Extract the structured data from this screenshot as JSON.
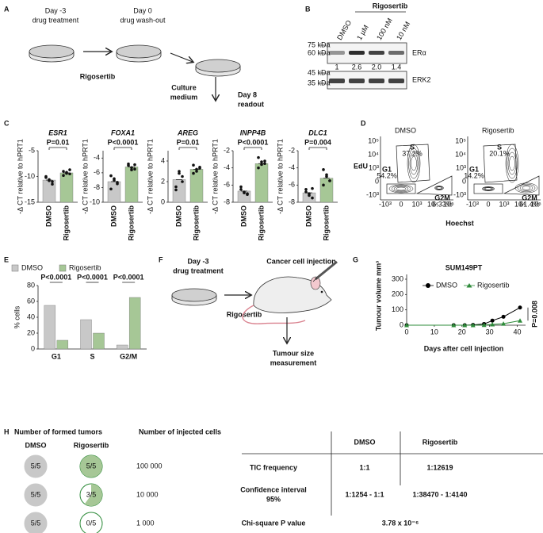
{
  "panel_labels": [
    "A",
    "B",
    "C",
    "D",
    "E",
    "F",
    "G",
    "H"
  ],
  "panel_a": {
    "steps": [
      {
        "day": "Day -3",
        "action": "drug treatment"
      },
      {
        "day": "Day 0",
        "action": "drug wash-out"
      }
    ],
    "drug": "Rigosertib",
    "medium": [
      "Culture",
      "medium"
    ],
    "readout": [
      "Day 8",
      "readout"
    ]
  },
  "panel_b": {
    "treatment": "Rigosertib",
    "lanes": [
      "DMSO",
      "1 µM",
      "100 nM",
      "10 nM"
    ],
    "markers_top": [
      "75 kDa",
      "60 kDa"
    ],
    "markers_bottom": [
      "45 kDa",
      "35 kDa"
    ],
    "proteins": [
      "ERα",
      "ERK2"
    ],
    "quantification": [
      "1",
      "2.6",
      "2.0",
      "1.4"
    ]
  },
  "panel_d": {
    "y_label": "EdU",
    "x_label": "Hoechst",
    "y_ticks": [
      "10⁵",
      "10⁴",
      "10³",
      "0",
      "-10³"
    ],
    "x_ticks": [
      "-10³",
      "0",
      "10³",
      "10⁴",
      "10⁵"
    ],
    "conditions": [
      {
        "name": "DMSO",
        "gates": [
          {
            "phase": "S",
            "percent": "37.2%"
          },
          {
            "phase": "G1",
            "percent": "54.2%"
          },
          {
            "phase": "G2M",
            "percent": "6.33%"
          }
        ]
      },
      {
        "name": "Rigosertib",
        "gates": [
          {
            "phase": "S",
            "percent": "20.1%"
          },
          {
            "phase": "G1",
            "percent": "14.2%"
          },
          {
            "phase": "G2M",
            "percent": "61.4%"
          }
        ]
      }
    ]
  },
  "panel_f": {
    "step": {
      "day": "Day -3",
      "action": "drug treatment"
    },
    "drug": "Rigosertib",
    "injection": "Cancer cell injection",
    "readout": [
      "Tumour size",
      "measurement"
    ]
  },
  "panel_h": {
    "formed_title": "Number of formed tumors",
    "injected_title": "Number of injected cells",
    "groups": [
      "DMSO",
      "Rigosertib"
    ],
    "rows": [
      {
        "dmso": {
          "label": "5/5",
          "fraction": 1
        },
        "rigosertib": {
          "label": "5/5",
          "fraction": 1
        },
        "cells": "100 000"
      },
      {
        "dmso": {
          "label": "5/5",
          "fraction": 1
        },
        "rigosertib": {
          "label": "3/5",
          "fraction": 0.6
        },
        "cells": "10 000"
      },
      {
        "dmso": {
          "label": "5/5",
          "fraction": 1
        },
        "rigosertib": {
          "label": "0/5",
          "fraction": 0
        },
        "cells": "1 000"
      }
    ],
    "table": {
      "header": [
        "DMSO",
        "Rigosertib"
      ],
      "rows": [
        [
          [
            "TIC frequency"
          ],
          "1:1",
          "1:12619"
        ],
        [
          [
            "Confidence interval",
            "95%"
          ],
          "1:1254 - 1:1",
          "1:38470 - 1:4140"
        ]
      ],
      "chi": [
        "Chi-square P value",
        "3.78 x 10⁻⁶"
      ]
    }
  },
  "chart_data": [
    {
      "type": "bar",
      "title": "ESR1",
      "annotation": "P=0.01",
      "y_label": "-Δ CT relative to hPRT1",
      "categories": [
        "DMSO",
        "Rigosertib"
      ],
      "values": [
        -10.7,
        -9.3
      ],
      "colors": [
        "#c8c8c8",
        "#a6c796"
      ],
      "points": [
        [
          -10.2,
          -10.8,
          -11.5,
          -10.0,
          -10.6,
          -11.0
        ],
        [
          -9.0,
          -9.4,
          -8.7,
          -9.8,
          -9.2,
          -9.5
        ]
      ],
      "ylim": [
        -15,
        -5
      ],
      "yticks": [
        -5,
        -10,
        -15
      ]
    },
    {
      "type": "bar",
      "title": "FOXA1",
      "annotation": "P<0.0001",
      "y_label": "-Δ CT relative to hPRT1",
      "categories": [
        "DMSO",
        "Rigosertib"
      ],
      "values": [
        -7.2,
        -5.2
      ],
      "colors": [
        "#c8c8c8",
        "#a6c796"
      ],
      "points": [
        [
          -6.4,
          -7.0,
          -7.5,
          -8.2,
          -6.8,
          -7.3
        ],
        [
          -4.8,
          -5.3,
          -5.5,
          -5.0,
          -5.6,
          -4.9
        ]
      ],
      "ylim": [
        -10,
        -3
      ],
      "yticks": [
        -4,
        -6,
        -8,
        -10
      ]
    },
    {
      "type": "bar",
      "title": "AREG",
      "annotation": "P=0.01",
      "y_label": "-Δ CT relative to hPRT1",
      "categories": [
        "DMSO",
        "Rigosertib"
      ],
      "values": [
        2.2,
        3.2
      ],
      "colors": [
        "#c8c8c8",
        "#a6c796"
      ],
      "points": [
        [
          1.5,
          3.0,
          2.5,
          1.2,
          2.8,
          2.0
        ],
        [
          3.6,
          3.0,
          3.4,
          2.8,
          3.2,
          3.3
        ]
      ],
      "ylim": [
        0,
        5
      ],
      "yticks": [
        0,
        2,
        4
      ]
    },
    {
      "type": "bar",
      "title": "INPP4B",
      "annotation": "P<0.0001",
      "y_label": "-Δ CT relative to hPRT1",
      "categories": [
        "DMSO",
        "Rigosertib"
      ],
      "values": [
        -6.7,
        -3.5
      ],
      "colors": [
        "#c8c8c8",
        "#a6c796"
      ],
      "points": [
        [
          -6.2,
          -6.9,
          -7.0,
          -6.5,
          -6.8,
          -7.1
        ],
        [
          -2.8,
          -3.6,
          -3.2,
          -4.0,
          -3.3,
          -3.5
        ]
      ],
      "ylim": [
        -8,
        -2
      ],
      "yticks": [
        -2,
        -4,
        -6,
        -8
      ]
    },
    {
      "type": "bar",
      "title": "DLC1",
      "annotation": "P=0.004",
      "y_label": "-Δ CT relative to hPRT1",
      "categories": [
        "DMSO",
        "Rigosertib"
      ],
      "values": [
        -6.9,
        -5.2
      ],
      "colors": [
        "#c8c8c8",
        "#a6c796"
      ],
      "points": [
        [
          -6.5,
          -7.2,
          -7.5,
          -6.8,
          -7.0,
          -6.4
        ],
        [
          -4.2,
          -5.0,
          -5.5,
          -6.0,
          -4.8,
          -5.5
        ]
      ],
      "ylim": [
        -8,
        -2
      ],
      "yticks": [
        -2,
        -4,
        -6,
        -8
      ]
    },
    {
      "type": "grouped_bar",
      "y_label": "% cells",
      "categories": [
        "G1",
        "S",
        "G2/M"
      ],
      "series": [
        {
          "name": "DMSO",
          "color": "#c8c8c8",
          "values": [
            55,
            37,
            5
          ]
        },
        {
          "name": "Rigosertib",
          "color": "#a6c796",
          "values": [
            11,
            20,
            65
          ]
        }
      ],
      "annotations": [
        "P<0.0001",
        "P<0.0001",
        "P<0.0001"
      ],
      "ylim": [
        0,
        80
      ],
      "yticks": [
        0,
        20,
        40,
        60,
        80
      ]
    },
    {
      "type": "line",
      "title": "SUM149PT",
      "x_label": "Days after cell injection",
      "y_label": "Tumour volume mm³",
      "annotation": "P=0.008",
      "x": [
        0,
        17,
        21,
        24,
        28,
        31,
        35,
        41
      ],
      "series": [
        {
          "name": "DMSO",
          "color": "#000000",
          "marker": "circle",
          "values": [
            0,
            0,
            0,
            2,
            8,
            30,
            55,
            115
          ]
        },
        {
          "name": "Rigosertib",
          "color": "#2e8b3a",
          "marker": "triangle",
          "values": [
            0,
            0,
            0,
            0,
            1,
            5,
            10,
            30
          ]
        }
      ],
      "xlim": [
        0,
        43
      ],
      "xticks": [
        0,
        10,
        20,
        30,
        40
      ],
      "ylim": [
        0,
        300
      ],
      "yticks": [
        0,
        100,
        200,
        300
      ]
    }
  ]
}
